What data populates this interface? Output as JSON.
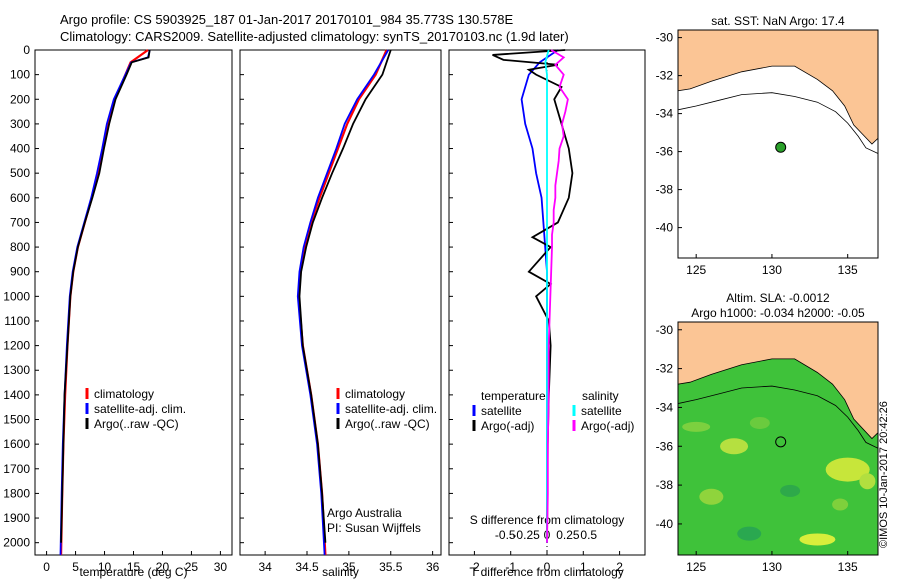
{
  "header": {
    "line1": "Argo profile: CS 5903925_187 01-Jan-2017 20170101_984 35.773S 130.578E",
    "line2": "Climatology: CARS2009. Satellite-adjusted climatology: synTS_20170103.nc (1.9d later)"
  },
  "colors": {
    "climatology": "#ff0000",
    "satellite": "#0000ff",
    "argo": "#000000",
    "sal_satellite": "#00ffff",
    "sal_argo": "#ff00ff",
    "land": "#fbc595"
  },
  "chart_data": [
    {
      "type": "line",
      "name_key": "temperature_panel",
      "xlabel": "temperature (deg C)",
      "ylabel": "",
      "xlim": [
        -2,
        32
      ],
      "ylim": [
        2050,
        0
      ],
      "xticks": [
        "0",
        "5",
        "10",
        "15",
        "20",
        "25",
        "30"
      ],
      "yticks": [
        "0",
        "100",
        "200",
        "300",
        "400",
        "500",
        "600",
        "700",
        "800",
        "900",
        "1000",
        "1100",
        "1200",
        "1300",
        "1400",
        "1500",
        "1600",
        "1700",
        "1800",
        "1900",
        "2000"
      ],
      "legend": [
        "climatology",
        "satellite-adj. clim.",
        "Argo(..raw -QC)"
      ],
      "series": [
        {
          "name": "climatology",
          "depth": [
            0,
            50,
            100,
            200,
            300,
            400,
            500,
            600,
            700,
            800,
            900,
            1000,
            1200,
            1400,
            1600,
            1800,
            2050
          ],
          "values": [
            17.5,
            14.5,
            13.6,
            11.8,
            10.6,
            9.7,
            8.8,
            7.8,
            6.6,
            5.4,
            4.6,
            4.1,
            3.6,
            3.2,
            2.9,
            2.7,
            2.5
          ]
        },
        {
          "name": "satellite-adj. clim.",
          "depth": [
            0,
            30,
            50,
            100,
            200,
            300,
            400,
            500,
            600,
            700,
            800,
            900,
            1000,
            1200,
            1400,
            1600,
            1800,
            2050
          ],
          "values": [
            17.8,
            17.5,
            14.6,
            13.6,
            11.6,
            10.4,
            9.6,
            8.7,
            7.7,
            6.5,
            5.3,
            4.5,
            4.0,
            3.5,
            3.1,
            2.8,
            2.6,
            2.4
          ]
        },
        {
          "name": "Argo(..raw -QC)",
          "depth": [
            0,
            30,
            50,
            100,
            200,
            300,
            400,
            500,
            600,
            700,
            800,
            900,
            1000,
            1200,
            1400,
            1600,
            1800,
            2000
          ],
          "values": [
            17.8,
            17.6,
            14.7,
            13.8,
            11.9,
            10.8,
            9.9,
            9.1,
            7.9,
            6.6,
            5.4,
            4.6,
            4.1,
            3.6,
            3.1,
            2.9,
            2.7,
            2.5
          ]
        }
      ]
    },
    {
      "type": "line",
      "name_key": "salinity_panel",
      "xlabel": "salinity",
      "xlim": [
        33.7,
        36.1
      ],
      "ylim": [
        2050,
        0
      ],
      "xticks": [
        "34",
        "34.5",
        "35",
        "35.5",
        "36"
      ],
      "legend": [
        "climatology",
        "satellite-adj. clim.",
        "Argo(..raw -QC)"
      ],
      "annotation": [
        "Argo Australia",
        "PI: Susan Wijffels"
      ],
      "series": [
        {
          "name": "climatology",
          "depth": [
            0,
            100,
            200,
            300,
            400,
            500,
            600,
            700,
            800,
            900,
            1000,
            1200,
            1400,
            1600,
            1800,
            2050
          ],
          "values": [
            35.45,
            35.32,
            35.12,
            34.98,
            34.87,
            34.76,
            34.65,
            34.55,
            34.47,
            34.42,
            34.4,
            34.45,
            34.55,
            34.63,
            34.68,
            34.72
          ]
        },
        {
          "name": "satellite-adj. clim.",
          "depth": [
            0,
            100,
            200,
            300,
            400,
            500,
            600,
            700,
            800,
            900,
            1000,
            1200,
            1400,
            1600,
            1800,
            2050
          ],
          "values": [
            35.47,
            35.3,
            35.1,
            34.95,
            34.85,
            34.74,
            34.63,
            34.54,
            34.46,
            34.41,
            34.39,
            34.44,
            34.54,
            34.62,
            34.67,
            34.71
          ]
        },
        {
          "name": "Argo(..raw -QC)",
          "depth": [
            0,
            50,
            100,
            200,
            300,
            400,
            500,
            600,
            700,
            800,
            900,
            1000,
            1200,
            1400,
            1600,
            1800,
            2000
          ],
          "values": [
            35.5,
            35.45,
            35.4,
            35.2,
            35.05,
            34.93,
            34.8,
            34.68,
            34.57,
            34.49,
            34.43,
            34.41,
            34.45,
            34.55,
            34.63,
            34.68,
            34.72
          ]
        }
      ]
    },
    {
      "type": "line",
      "name_key": "difference_panel",
      "xlabel": "T difference from climatology",
      "xlabel2": "S difference from climatology",
      "xlim": [
        -2.7,
        2.7
      ],
      "ylim": [
        2050,
        0
      ],
      "xticks": [
        "-2",
        "-1",
        "0",
        "1",
        "2"
      ],
      "xticks2": [
        "-0.5",
        "-0.25",
        "0",
        "0.25",
        "0.5"
      ],
      "legend_t": {
        "title": "temperature",
        "items": [
          "satellite",
          "Argo(-adj)"
        ]
      },
      "legend_s": {
        "title": "salinity",
        "items": [
          "satellite",
          "Argo(-adj)"
        ]
      },
      "series": [
        {
          "name": "T satellite",
          "depth": [
            0,
            50,
            100,
            200,
            300,
            400,
            500,
            600,
            700,
            800,
            900,
            1000,
            1200,
            1400,
            1600,
            1800,
            2000
          ],
          "values": [
            0.3,
            -0.2,
            -0.5,
            -0.7,
            -0.6,
            -0.4,
            -0.3,
            -0.15,
            -0.1,
            -0.05,
            0,
            0,
            0,
            0,
            0,
            0,
            0
          ]
        },
        {
          "name": "T Argo(-adj)",
          "depth": [
            0,
            20,
            40,
            60,
            80,
            100,
            150,
            200,
            300,
            400,
            500,
            600,
            700,
            760,
            800,
            900,
            950,
            1000,
            1100,
            1200,
            1400,
            1600,
            1800,
            2000
          ],
          "values": [
            0.5,
            -1.5,
            -1.2,
            0.3,
            -0.5,
            -0.3,
            0.4,
            0.2,
            0.4,
            0.6,
            0.7,
            0.6,
            0.3,
            -0.4,
            0.1,
            -0.5,
            0.1,
            -0.3,
            0.05,
            0.1,
            0.05,
            0.02,
            0.01,
            0
          ]
        },
        {
          "name": "S satellite",
          "depth": [
            0,
            50,
            100,
            200,
            300,
            400,
            500,
            600,
            700,
            800,
            1000,
            1200,
            1400,
            1600,
            1800,
            2000
          ],
          "values": [
            0.02,
            -0.02,
            0.0,
            0.0,
            0.0,
            0.0,
            0.0,
            0.0,
            0.0,
            0.0,
            0.0,
            0.0,
            0.0,
            0.0,
            0.0,
            0.0
          ]
        },
        {
          "name": "S Argo(-adj)",
          "depth": [
            0,
            30,
            60,
            100,
            150,
            200,
            250,
            300,
            350,
            400,
            450,
            500,
            550,
            600,
            650,
            700,
            750,
            800,
            900,
            1000,
            1100,
            1200,
            1400,
            1600,
            1800,
            2000
          ],
          "values": [
            0.05,
            0.2,
            0.1,
            0.2,
            0.15,
            0.25,
            0.22,
            0.18,
            0.2,
            0.15,
            0.14,
            0.12,
            0.1,
            0.1,
            0.08,
            0.08,
            0.06,
            0.06,
            0.05,
            0.04,
            0.03,
            0.02,
            0.02,
            0.01,
            0.01,
            0.0
          ]
        }
      ]
    }
  ],
  "maps": {
    "top": {
      "title": "sat. SST: NaN Argo: 17.4",
      "xticks": [
        "125",
        "130",
        "135"
      ],
      "yticks": [
        "-30",
        "-32",
        "-34",
        "-36",
        "-38",
        "-40"
      ]
    },
    "bottom": {
      "title1": "Altim. SLA: -0.0012",
      "title2": "Argo h1000: -0.034 h2000: -0.05",
      "xticks": [
        "125",
        "130",
        "135"
      ],
      "yticks": [
        "-30",
        "-32",
        "-34",
        "-36",
        "-38",
        "-40"
      ]
    }
  },
  "stamp": "©IMOS 10-Jan-2017 20:42:26"
}
